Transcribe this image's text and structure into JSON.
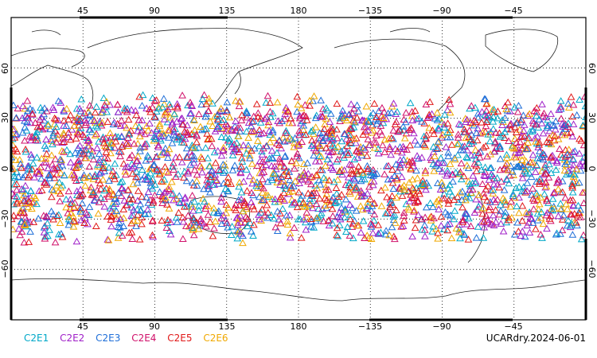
{
  "map": {
    "lon_range": [
      0,
      360
    ],
    "lat_range": [
      -90,
      90
    ],
    "grid": "dotted",
    "marker": "triangle"
  },
  "axes": {
    "top_lon_labels": [
      "45",
      "90",
      "135",
      "180",
      "−135",
      "−90",
      "−45"
    ],
    "bottom_lon_labels": [
      "45",
      "90",
      "135",
      "180",
      "−135",
      "−90",
      "−45"
    ],
    "left_lat_labels": [
      "60",
      "30",
      "0",
      "−30",
      "−60"
    ],
    "right_lat_labels": [
      "60",
      "30",
      "0",
      "−30",
      "−60"
    ]
  },
  "legend": [
    {
      "label": "C2E1",
      "color": "#00a8c8"
    },
    {
      "label": "C2E2",
      "color": "#a020c8"
    },
    {
      "label": "C2E3",
      "color": "#1e6ed8"
    },
    {
      "label": "C2E4",
      "color": "#d0106a"
    },
    {
      "label": "C2E5",
      "color": "#e01818"
    },
    {
      "label": "C2E6",
      "color": "#f0a800"
    }
  ],
  "dataset_label": "UCARdry.2024-06-01",
  "obs_lat_range": [
    -45,
    45
  ]
}
